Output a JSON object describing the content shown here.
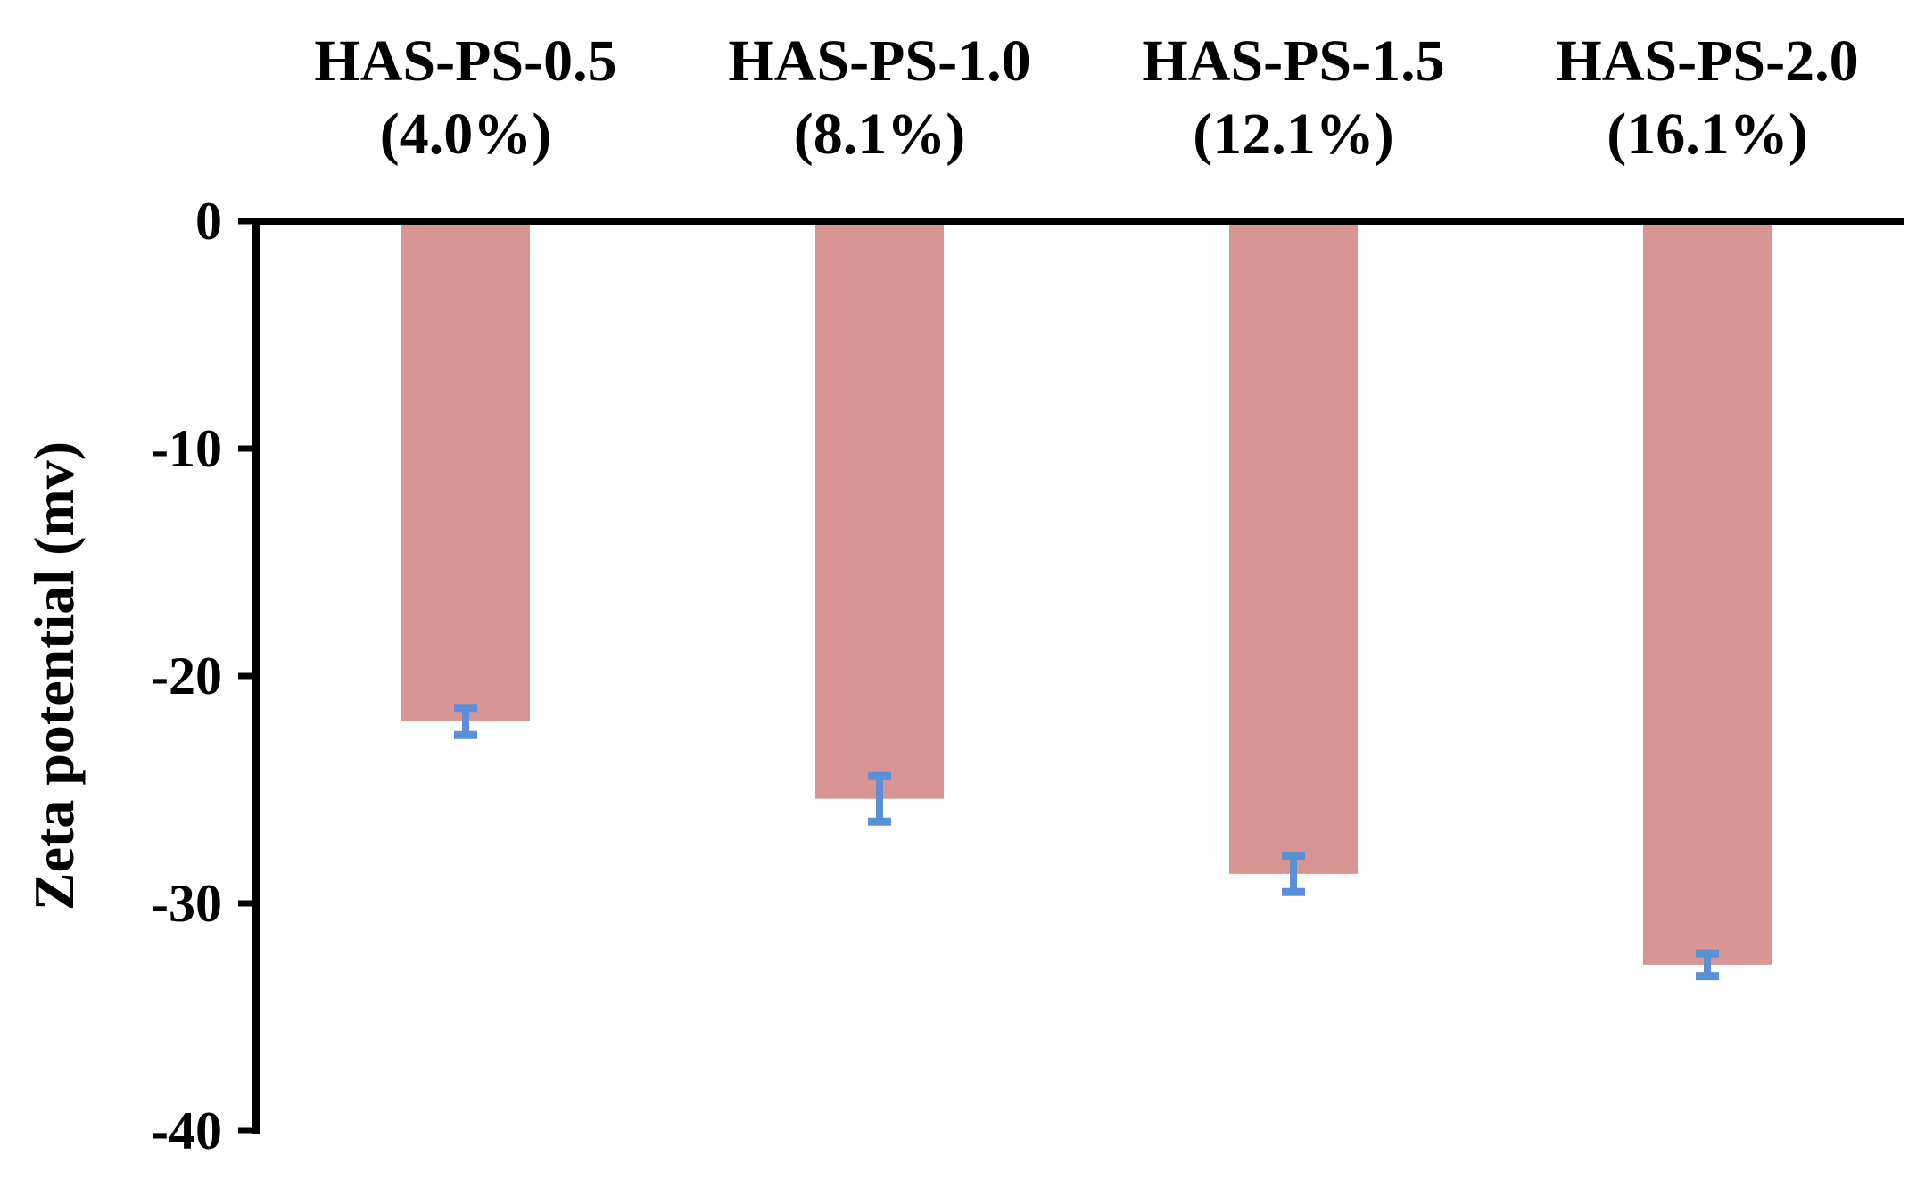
{
  "chart_data": {
    "type": "bar",
    "categories": [
      [
        "HAS-PS-0.5",
        "(4.0%)"
      ],
      [
        "HAS-PS-1.0",
        "(8.1%)"
      ],
      [
        "HAS-PS-1.5",
        "(12.1%)"
      ],
      [
        "HAS-PS-2.0",
        "(16.1%)"
      ]
    ],
    "values": [
      -22.0,
      -25.4,
      -28.7,
      -32.7
    ],
    "error": [
      0.6,
      1.0,
      0.8,
      0.5
    ],
    "ylabel": "Zeta potential (mv)",
    "ylim": [
      -40,
      0
    ],
    "yticks": [
      0,
      -10,
      -20,
      -30,
      -40
    ],
    "x_axis_position": "top",
    "grid": false,
    "legend": "none",
    "colors": {
      "bar": "#d99494",
      "error_bar": "#5b8fd6",
      "axis": "#000000"
    }
  }
}
